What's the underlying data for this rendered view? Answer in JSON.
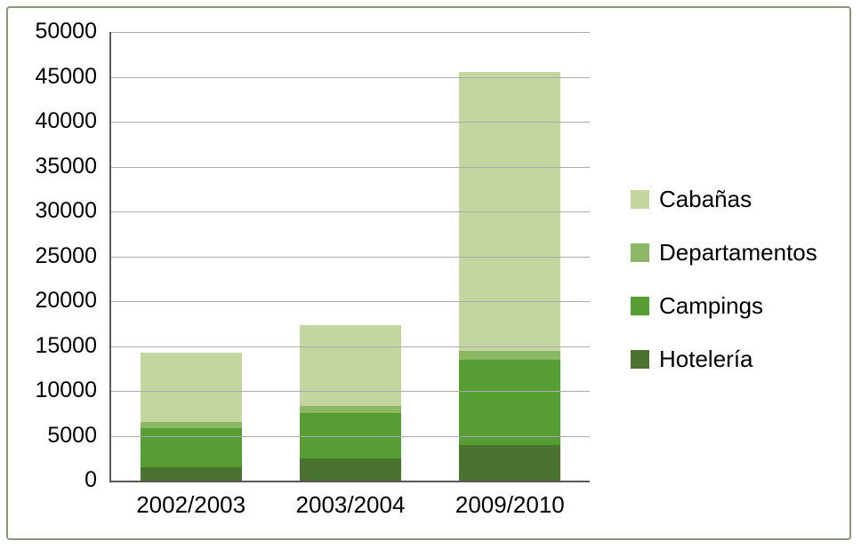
{
  "chart_data": {
    "type": "bar",
    "variant": "stacked",
    "title": "",
    "categories": [
      "2002/2003",
      "2003/2004",
      "2009/2010"
    ],
    "series": [
      {
        "name": "Hotelería",
        "color": "#4a7231",
        "values": [
          1500,
          2500,
          4000
        ]
      },
      {
        "name": "Campings",
        "color": "#569d33",
        "values": [
          4300,
          5000,
          9500
        ]
      },
      {
        "name": "Departamentos",
        "color": "#8cb866",
        "values": [
          700,
          800,
          1000
        ]
      },
      {
        "name": "Cabañas",
        "color": "#c3d6a0",
        "values": [
          7800,
          9000,
          31000
        ]
      }
    ],
    "totals": [
      14300,
      17300,
      45500
    ],
    "legend_order": [
      "Cabañas",
      "Departamentos",
      "Campings",
      "Hotelería"
    ],
    "legend_position": "right",
    "y_axis": {
      "min": 0,
      "max": 50000,
      "step": 5000,
      "tick_labels": [
        "0",
        "5000",
        "10000",
        "15000",
        "20000",
        "25000",
        "30000",
        "35000",
        "40000",
        "45000",
        "50000"
      ]
    },
    "x_axis_label": "",
    "y_axis_label": "",
    "grid": true,
    "colors": {
      "frame_border": "#88997a",
      "axis_line": "#595959",
      "gridline": "#ababab",
      "background": "#ffffff",
      "text": "#000000"
    }
  }
}
